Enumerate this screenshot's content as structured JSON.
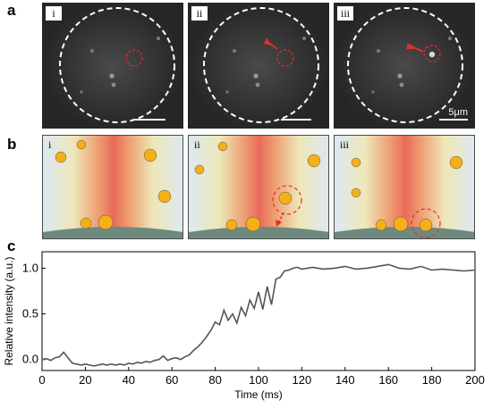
{
  "figure": {
    "panel_a_label": "a",
    "panel_b_label": "b",
    "panel_c_label": "c",
    "subpanels": [
      "i",
      "ii",
      "iii"
    ],
    "scale_bar_label": "5μm"
  },
  "colors": {
    "micro_bg": "#262626",
    "dashed_circle": "#ffffff",
    "target_circle": "#e0302a",
    "arrow": "#e0302a",
    "particle": "#f5b016",
    "curve": "#555555",
    "surface": "#6e8a7f"
  },
  "chart_data": {
    "type": "line",
    "xlabel": "Time (ms)",
    "ylabel": "Relative intensity (a.u.)",
    "xlim": [
      0,
      200
    ],
    "ylim": [
      -0.12,
      1.18
    ],
    "xticks": [
      0,
      20,
      40,
      60,
      80,
      100,
      120,
      140,
      160,
      180,
      200
    ],
    "yticks": [
      0.0,
      0.5,
      1.0
    ],
    "ytick_labels": [
      "0.0",
      "0.5",
      "1.0"
    ],
    "grid": false,
    "series": [
      {
        "x": [
          0,
          2,
          4,
          6,
          8,
          10,
          12,
          14,
          16,
          18,
          20,
          22,
          24,
          26,
          28,
          30,
          32,
          34,
          36,
          38,
          40,
          42,
          44,
          46,
          48,
          50,
          52,
          54,
          56,
          58,
          60,
          62,
          64,
          66,
          68,
          70,
          72,
          74,
          76,
          78,
          80,
          82,
          84,
          86,
          88,
          90,
          92,
          94,
          96,
          98,
          100,
          102,
          104,
          106,
          108,
          110,
          112,
          114,
          116,
          118,
          120,
          125,
          130,
          135,
          140,
          145,
          150,
          155,
          160,
          165,
          170,
          175,
          180,
          185,
          190,
          195,
          200
        ],
        "y": [
          0.0,
          0.01,
          -0.01,
          0.02,
          0.03,
          0.08,
          0.02,
          -0.04,
          -0.05,
          -0.06,
          -0.05,
          -0.06,
          -0.07,
          -0.06,
          -0.05,
          -0.06,
          -0.05,
          -0.06,
          -0.05,
          -0.06,
          -0.04,
          -0.05,
          -0.03,
          -0.04,
          -0.02,
          -0.03,
          -0.01,
          0.0,
          0.04,
          -0.01,
          0.01,
          0.02,
          0.0,
          0.03,
          0.05,
          0.1,
          0.14,
          0.19,
          0.25,
          0.32,
          0.41,
          0.38,
          0.54,
          0.43,
          0.5,
          0.4,
          0.57,
          0.48,
          0.65,
          0.56,
          0.74,
          0.55,
          0.8,
          0.6,
          0.88,
          0.9,
          0.97,
          0.98,
          1.0,
          1.01,
          0.99,
          1.01,
          0.99,
          1.0,
          1.02,
          0.99,
          1.0,
          1.02,
          1.04,
          1.0,
          0.99,
          1.02,
          0.98,
          0.99,
          0.98,
          0.97,
          0.98
        ]
      }
    ]
  }
}
